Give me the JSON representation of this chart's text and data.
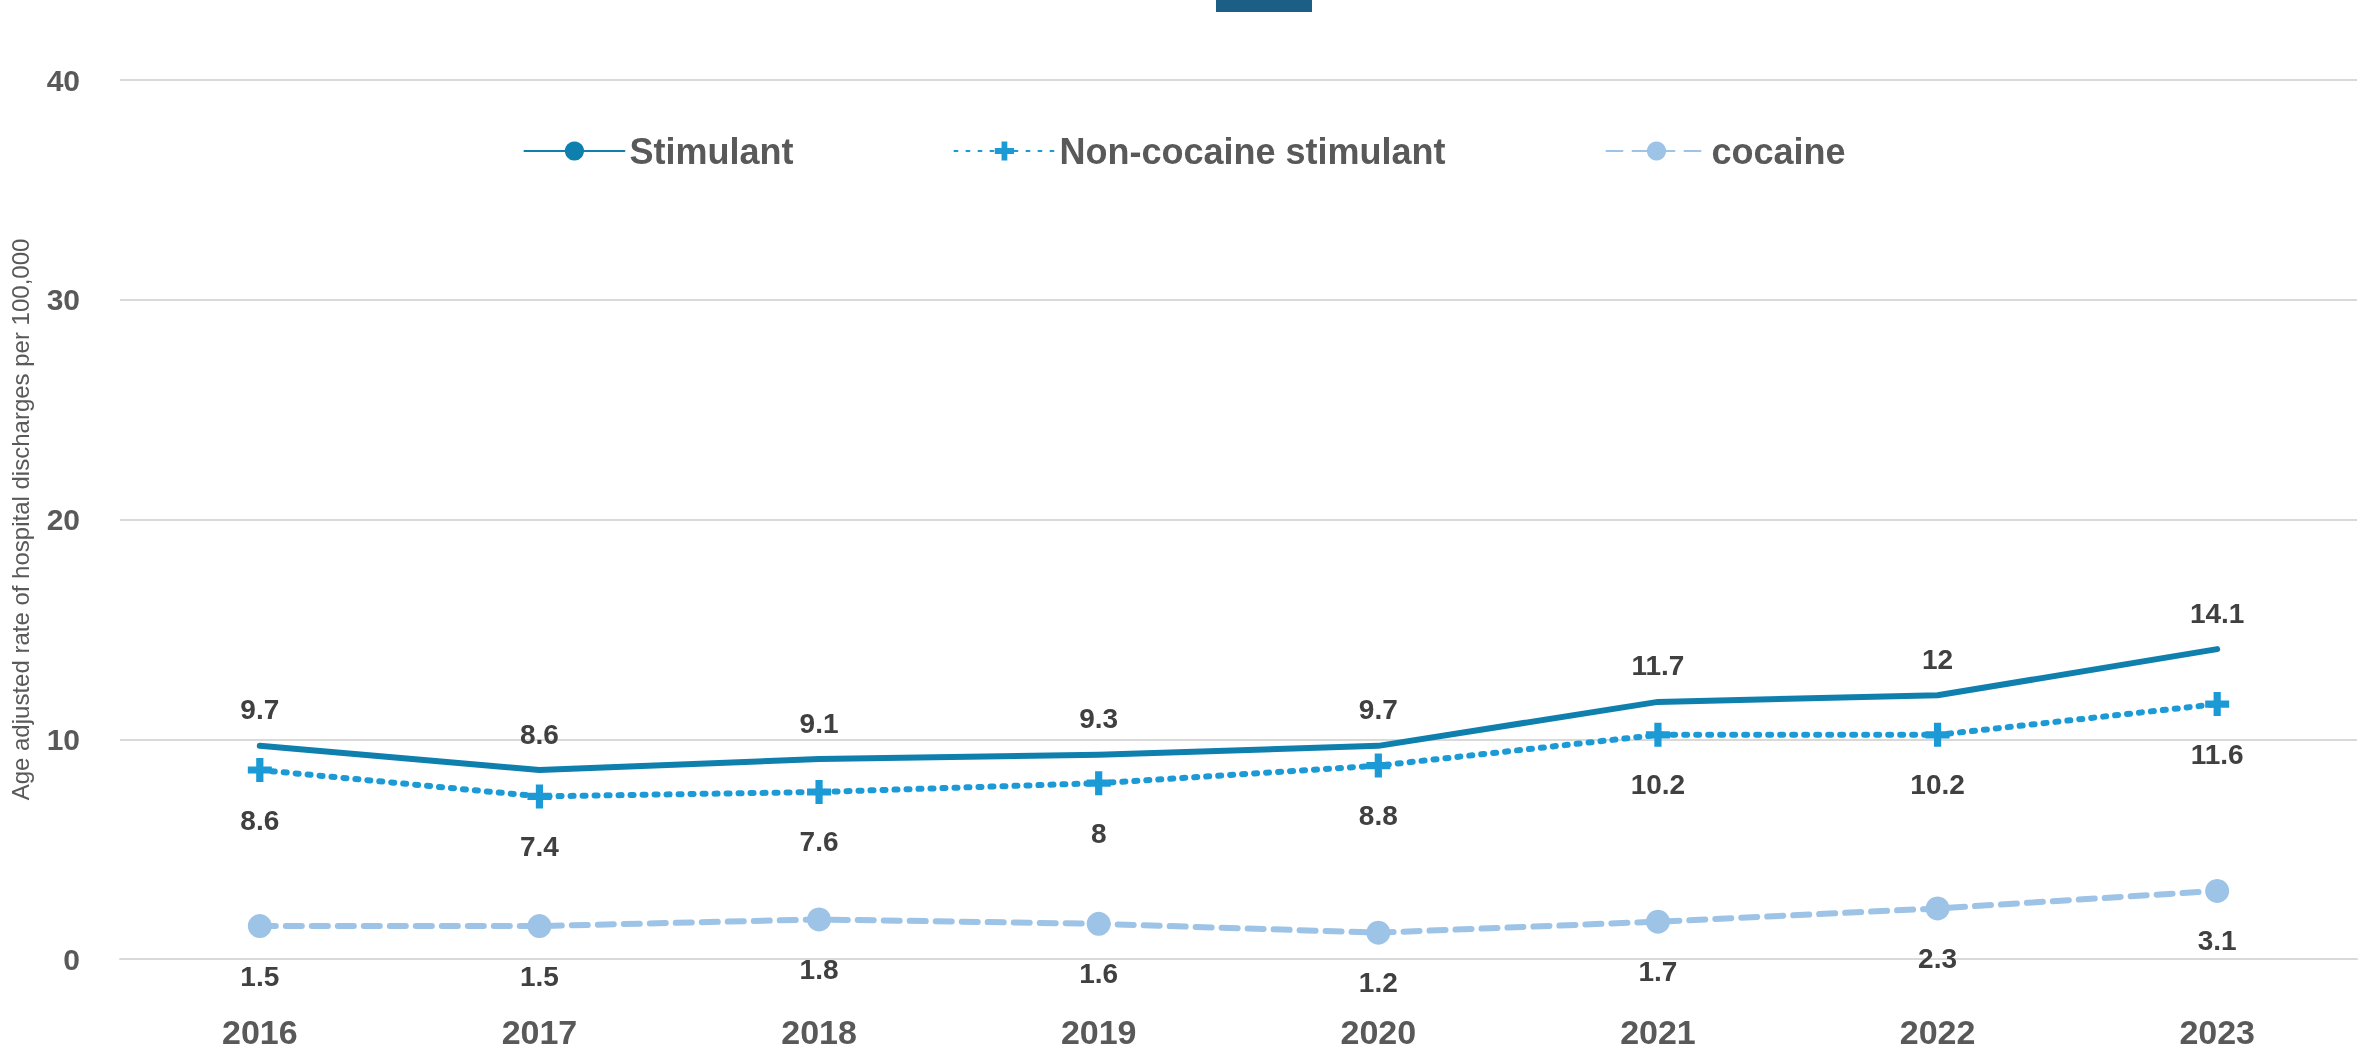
{
  "chart_data": {
    "type": "line",
    "ylabel": "Age adjusted rate of hospital discharges per 100,000",
    "categories": [
      "2016",
      "2017",
      "2018",
      "2019",
      "2020",
      "2021",
      "2022",
      "2023"
    ],
    "series": [
      {
        "name": "Stimulant",
        "color": "#0f7fae",
        "values": [
          9.7,
          8.6,
          9.1,
          9.3,
          9.7,
          11.7,
          12,
          14.1
        ],
        "marker": "none",
        "line_style": "solid"
      },
      {
        "name": "Non-cocaine stimulant",
        "color": "#1c9ad6",
        "values": [
          8.6,
          7.4,
          7.6,
          8,
          8.8,
          10.2,
          10.2,
          11.6
        ],
        "marker": "cross",
        "line_style": "dotted"
      },
      {
        "name": "cocaine",
        "color": "#9dc3e6",
        "values": [
          1.5,
          1.5,
          1.8,
          1.6,
          1.2,
          1.7,
          2.3,
          3.1
        ],
        "marker": "circle",
        "line_style": "dashed"
      }
    ],
    "ylim": [
      0,
      40
    ],
    "yticks": [
      0,
      10,
      20,
      30,
      40
    ],
    "grid": "y",
    "legend": "top",
    "data_labels": true
  }
}
